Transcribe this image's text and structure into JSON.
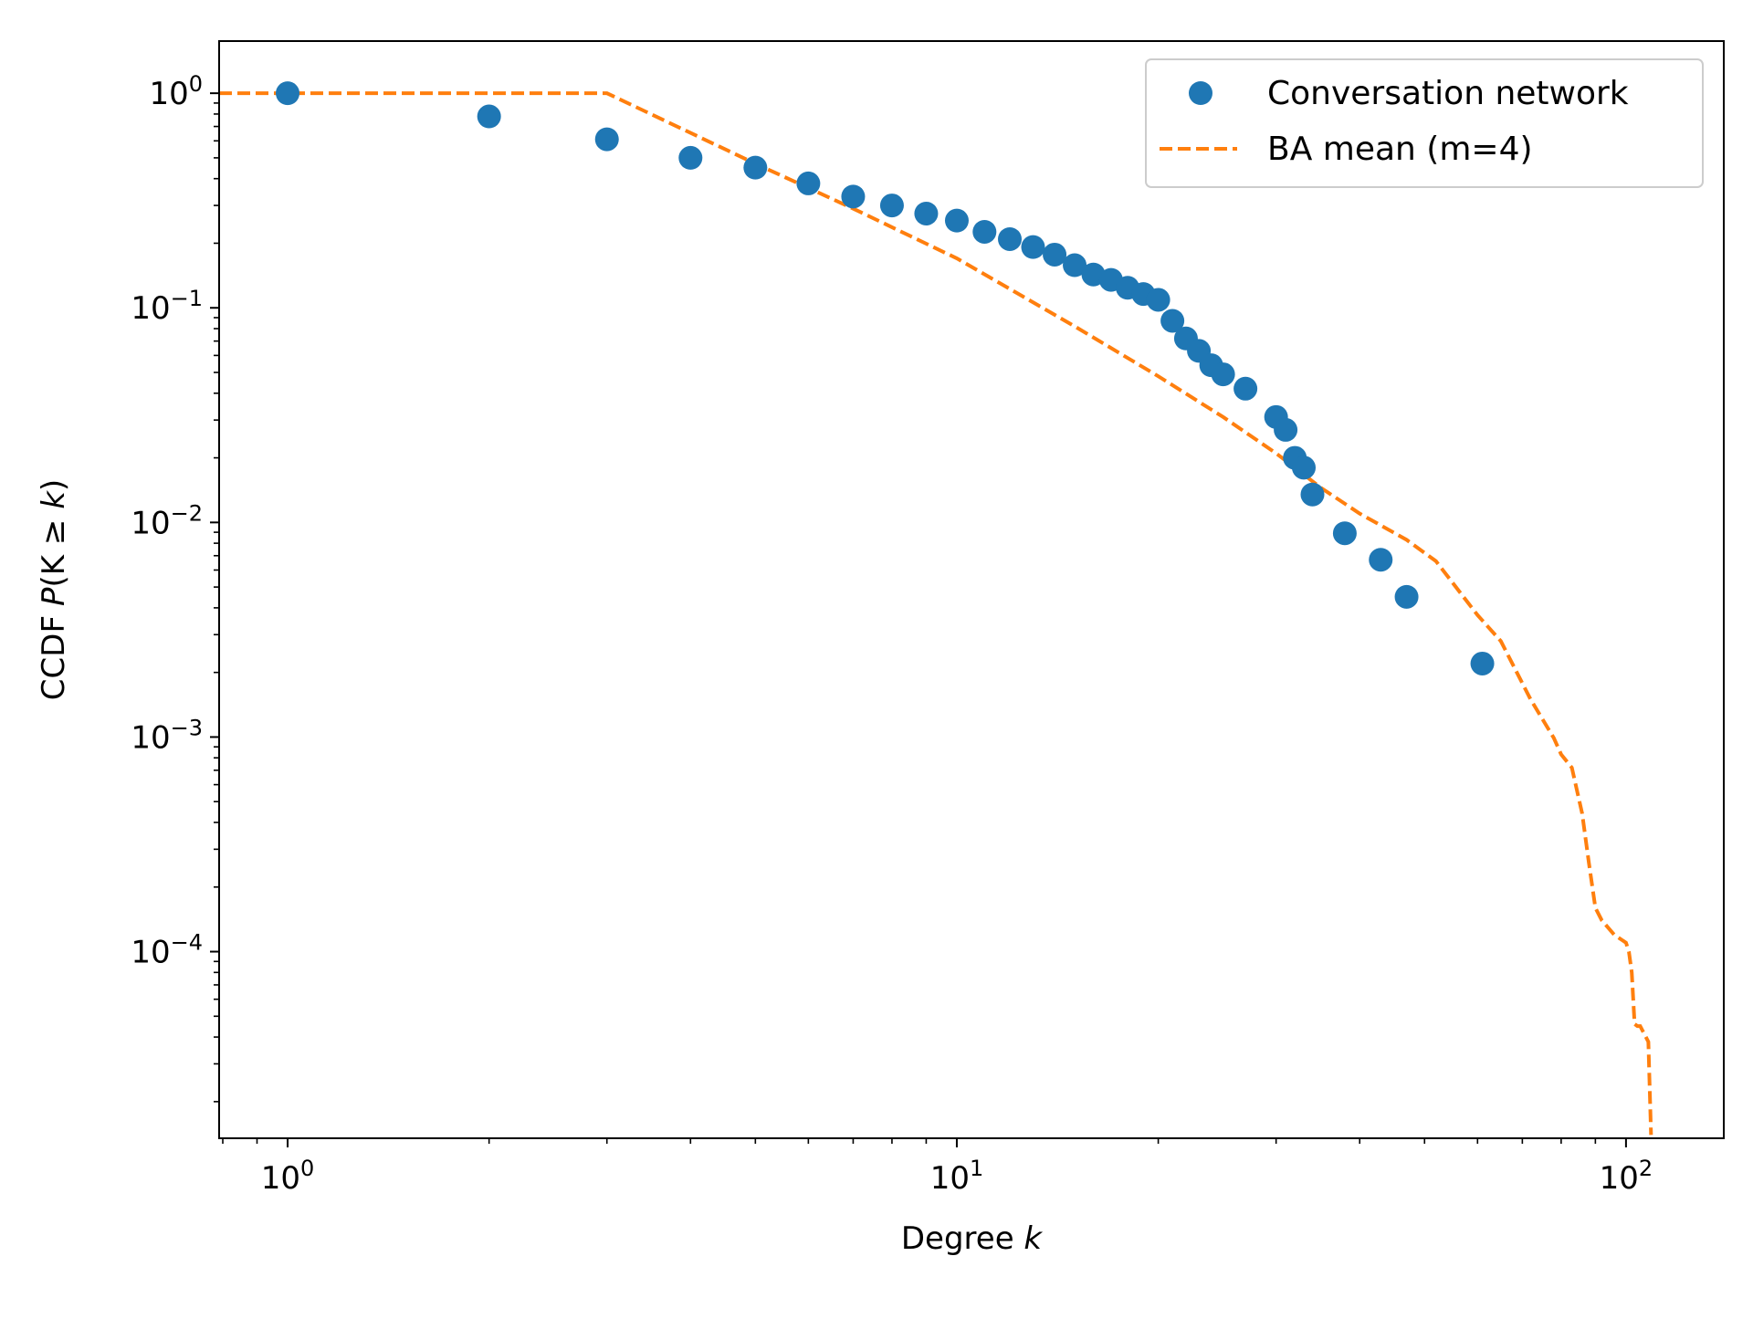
{
  "chart_data": {
    "type": "scatter",
    "xlabel_text": "Degree",
    "xlabel_var": "k",
    "ylabel_text": "CCDF",
    "ylabel_expr": {
      "p": "P",
      "open": "(",
      "k1": "K",
      "geq": " ≥ ",
      "k2": "k",
      "close": ")"
    },
    "xscale": "log",
    "yscale": "log",
    "xlim": [
      0.79,
      140
    ],
    "ylim": [
      1.35e-05,
      1.75
    ],
    "legend_position": "top-right",
    "grid": false,
    "x_ticks": [
      {
        "value": 1,
        "base": "10",
        "exp": "0"
      },
      {
        "value": 10,
        "base": "10",
        "exp": "1"
      },
      {
        "value": 100,
        "base": "10",
        "exp": "2"
      }
    ],
    "y_ticks": [
      {
        "value": 1,
        "base": "10",
        "exp": "0"
      },
      {
        "value": 0.1,
        "base": "10",
        "exp": "−1"
      },
      {
        "value": 0.01,
        "base": "10",
        "exp": "−2"
      },
      {
        "value": 0.001,
        "base": "10",
        "exp": "−3"
      },
      {
        "value": 0.0001,
        "base": "10",
        "exp": "−4"
      }
    ],
    "series": [
      {
        "name": "Conversation network",
        "kind": "markers",
        "color": "#1f77b4",
        "x": [
          1,
          2,
          3,
          4,
          5,
          6,
          7,
          8,
          9,
          10,
          11,
          12,
          13,
          14,
          15,
          16,
          17,
          18,
          19,
          20,
          21,
          22,
          23,
          24,
          25,
          27,
          30,
          31,
          32,
          33,
          34,
          38,
          43,
          47,
          61
        ],
        "y": [
          1.0,
          0.78,
          0.61,
          0.5,
          0.45,
          0.38,
          0.33,
          0.3,
          0.275,
          0.255,
          0.226,
          0.209,
          0.192,
          0.177,
          0.158,
          0.143,
          0.135,
          0.124,
          0.116,
          0.109,
          0.087,
          0.072,
          0.063,
          0.054,
          0.049,
          0.042,
          0.031,
          0.027,
          0.02,
          0.018,
          0.0135,
          0.0089,
          0.0067,
          0.0045,
          0.0022
        ]
      },
      {
        "name": "BA mean (m=4)",
        "kind": "dashed-line",
        "color": "#ff7f0e",
        "x": [
          0.79,
          3,
          5,
          7,
          10,
          15,
          20,
          25,
          30,
          35,
          40,
          47,
          52,
          60,
          65,
          72,
          78,
          80,
          83,
          86,
          88,
          90,
          92,
          96,
          100,
          101,
          102,
          103,
          104,
          105,
          108,
          109
        ],
        "y": [
          1.0,
          1.0,
          0.47,
          0.29,
          0.17,
          0.082,
          0.048,
          0.031,
          0.021,
          0.0145,
          0.011,
          0.0083,
          0.0066,
          0.0037,
          0.0028,
          0.0015,
          0.00099,
          0.00083,
          0.00072,
          0.00044,
          0.00026,
          0.00016,
          0.00014,
          0.00012,
          0.00011,
          0.0001,
          8e-05,
          4.6e-05,
          4.5e-05,
          4.5e-05,
          3.8e-05,
          1.4e-05
        ]
      }
    ]
  }
}
